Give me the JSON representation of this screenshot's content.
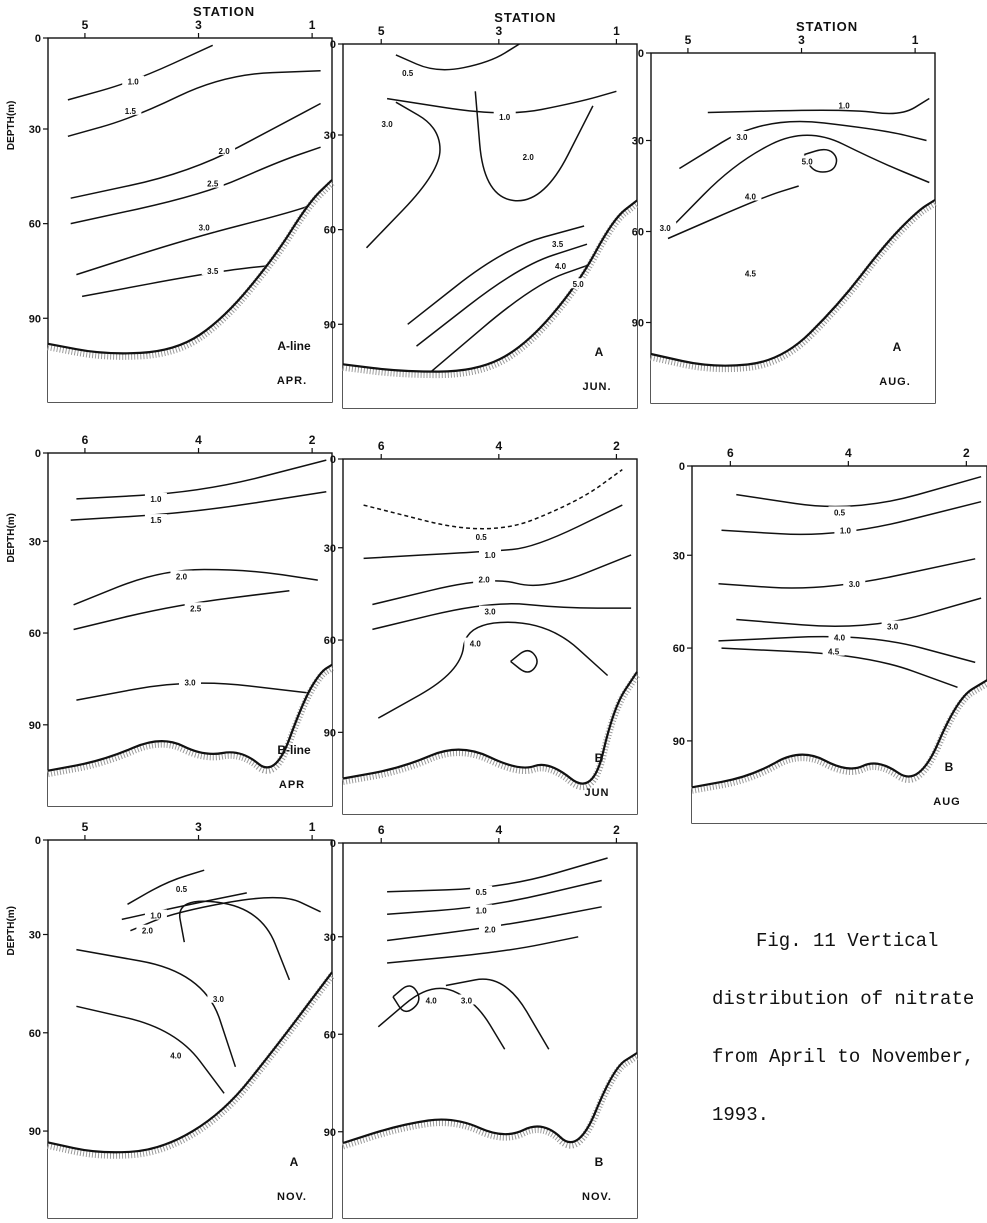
{
  "axis_title": "DEPTH(m)",
  "station_word": "STATION",
  "caption": {
    "line1": "Fig. 11  Vertical",
    "line2": "distribution of nitrate",
    "line3": "from April to November,",
    "line4": "1993."
  },
  "panels": [
    {
      "name": "a-line-april",
      "line_label": "A-line",
      "month": "APR.",
      "show_station_title": true,
      "show_depth_title": true,
      "stations": [
        "5",
        "3",
        "1"
      ],
      "depth_ticks": [
        "0",
        "30",
        "60",
        "90"
      ],
      "contour_labels": [
        "1.0",
        "1.5",
        "2.0",
        "2.5",
        "3.0",
        "3.5"
      ]
    },
    {
      "name": "a-line-june",
      "line_label": "A",
      "month": "JUN.",
      "show_station_title": true,
      "show_depth_title": false,
      "stations": [
        "5",
        "3",
        "1"
      ],
      "depth_ticks": [
        "0",
        "30",
        "60",
        "90"
      ],
      "contour_labels": [
        "0.5",
        "1.0",
        "3.0",
        "2.0",
        "3.5",
        "4.0",
        "5.0"
      ]
    },
    {
      "name": "a-line-august",
      "line_label": "A",
      "month": "AUG.",
      "show_station_title": true,
      "show_depth_title": false,
      "stations": [
        "5",
        "3",
        "1"
      ],
      "depth_ticks": [
        "0",
        "30",
        "60",
        "90"
      ],
      "contour_labels": [
        "1.0",
        "3.0",
        "5.0",
        "4.0",
        "3.0",
        "4.5"
      ]
    },
    {
      "name": "b-line-april",
      "line_label": "B-line",
      "month": "APR",
      "show_station_title": false,
      "show_depth_title": true,
      "stations": [
        "6",
        "4",
        "2"
      ],
      "depth_ticks": [
        "0",
        "30",
        "60",
        "90"
      ],
      "contour_labels": [
        "1.0",
        "1.5",
        "2.0",
        "2.5",
        "3.0"
      ]
    },
    {
      "name": "b-line-june",
      "line_label": "B",
      "month": "JUN",
      "show_station_title": false,
      "show_depth_title": false,
      "stations": [
        "6",
        "4",
        "2"
      ],
      "depth_ticks": [
        "0",
        "30",
        "60",
        "90"
      ],
      "contour_labels": [
        "0.5",
        "1.0",
        "2.0",
        "3.0",
        "4.0"
      ]
    },
    {
      "name": "b-line-august",
      "line_label": "B",
      "month": "AUG",
      "show_station_title": false,
      "show_depth_title": false,
      "stations": [
        "6",
        "4",
        "2"
      ],
      "depth_ticks": [
        "0",
        "30",
        "60",
        "90"
      ],
      "contour_labels": [
        "0.5",
        "1.0",
        "3.0",
        "3.0",
        "4.0",
        "4.5"
      ]
    },
    {
      "name": "a-line-november",
      "line_label": "A",
      "month": "NOV.",
      "show_station_title": false,
      "show_depth_title": true,
      "stations": [
        "5",
        "3",
        "1"
      ],
      "depth_ticks": [
        "0",
        "30",
        "60",
        "90"
      ],
      "contour_labels": [
        "0.5",
        "1.0",
        "2.0",
        "3.0",
        "4.0"
      ]
    },
    {
      "name": "b-line-november",
      "line_label": "B",
      "month": "NOV.",
      "show_station_title": false,
      "show_depth_title": false,
      "stations": [
        "6",
        "4",
        "2"
      ],
      "depth_ticks": [
        "0",
        "30",
        "60",
        "90"
      ],
      "contour_labels": [
        "0.5",
        "1.0",
        "2.0",
        "4.0",
        "3.0"
      ]
    }
  ]
}
